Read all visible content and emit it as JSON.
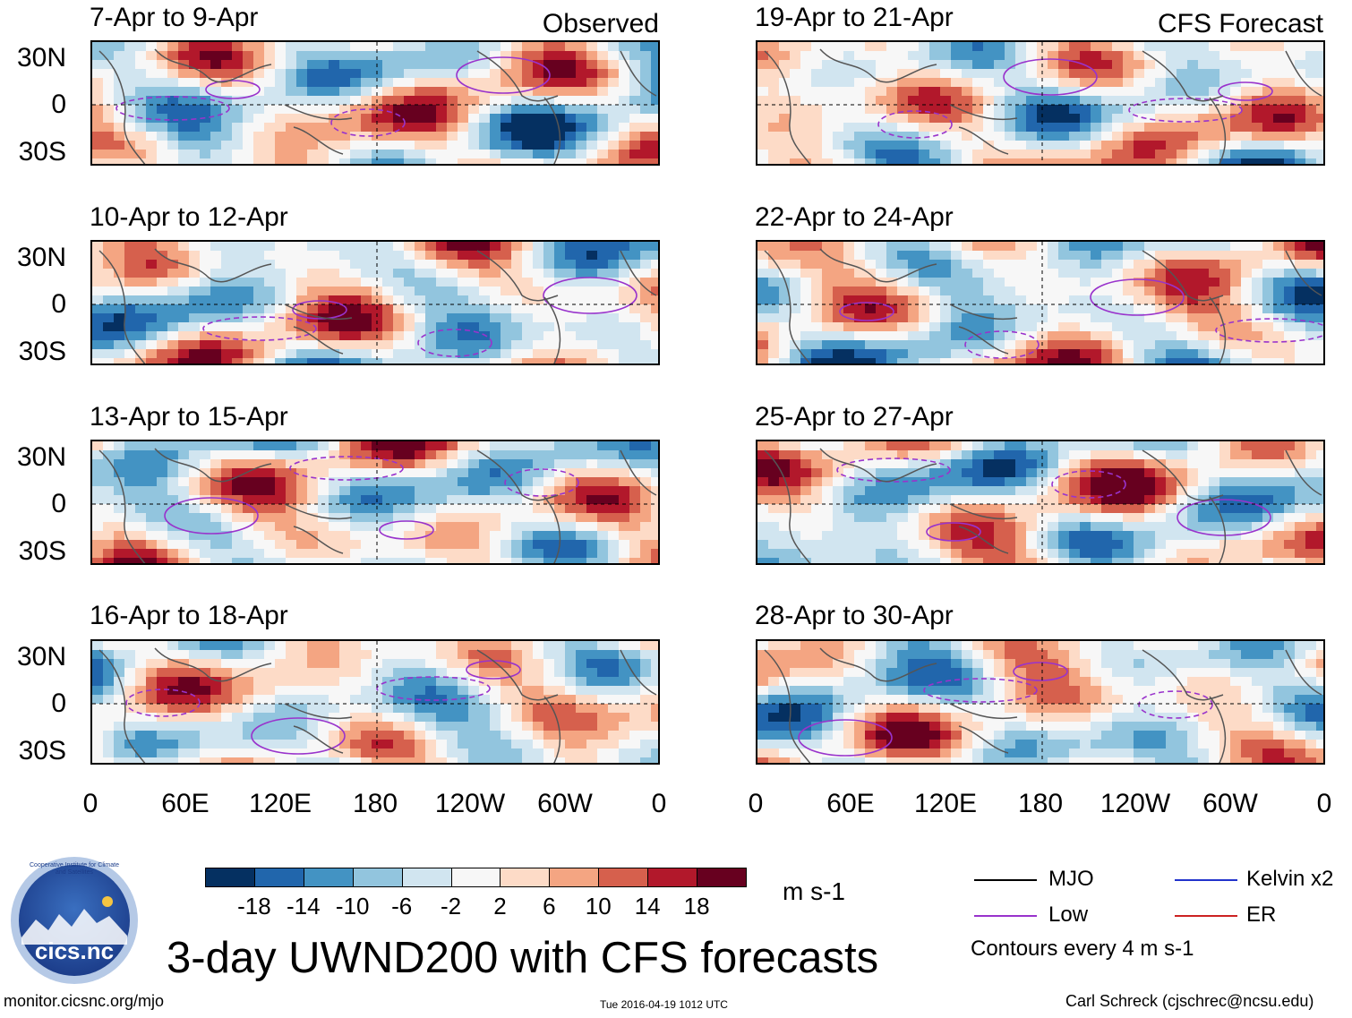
{
  "header": {
    "left_label": "Observed",
    "right_label": "CFS Forecast"
  },
  "panels": [
    {
      "title": "7-Apr to 9-Apr"
    },
    {
      "title": "10-Apr to 12-Apr"
    },
    {
      "title": "13-Apr to 15-Apr"
    },
    {
      "title": "16-Apr to 18-Apr"
    },
    {
      "title": "19-Apr to 21-Apr"
    },
    {
      "title": "22-Apr to 24-Apr"
    },
    {
      "title": "25-Apr to 27-Apr"
    },
    {
      "title": "28-Apr to 30-Apr"
    }
  ],
  "chart_data": {
    "type": "heatmap",
    "title": "3-day UWND200 with CFS forecasts",
    "variable": "200-hPa zonal wind anomaly",
    "units": "m s-1",
    "y_ticks": [
      "30N",
      "0",
      "30S"
    ],
    "x_ticks": [
      "0",
      "60E",
      "120E",
      "180",
      "120W",
      "60W",
      "0"
    ],
    "ylim": [
      -40,
      40
    ],
    "xlim": [
      0,
      360
    ],
    "colorbar": {
      "levels": [
        "-18",
        "-14",
        "-10",
        "-6",
        "-2",
        "2",
        "6",
        "10",
        "14",
        "18"
      ],
      "colors": [
        "#053061",
        "#2166ac",
        "#4393c3",
        "#92c5de",
        "#d1e5f0",
        "#f7f7f7",
        "#fddbc7",
        "#f4a582",
        "#d6604d",
        "#b2182b",
        "#67001f"
      ]
    },
    "legend": [
      {
        "label": "MJO",
        "color": "#000000"
      },
      {
        "label": "Kelvin x2",
        "color": "#2233cc"
      },
      {
        "label": "Low",
        "color": "#9933cc"
      },
      {
        "label": "ER",
        "color": "#cc2222"
      }
    ],
    "contour_note": "Contours every 4 m s-1"
  },
  "footer": {
    "website": "monitor.cicsnc.org/mjo",
    "timestamp": "Tue 2016-04-19 1012 UTC",
    "author": "Carl Schreck (cjschrec@ncsu.edu)",
    "logo_text": "cics.nc",
    "logo_ring_text": "Cooperative Institute for Climate and Satellites"
  }
}
